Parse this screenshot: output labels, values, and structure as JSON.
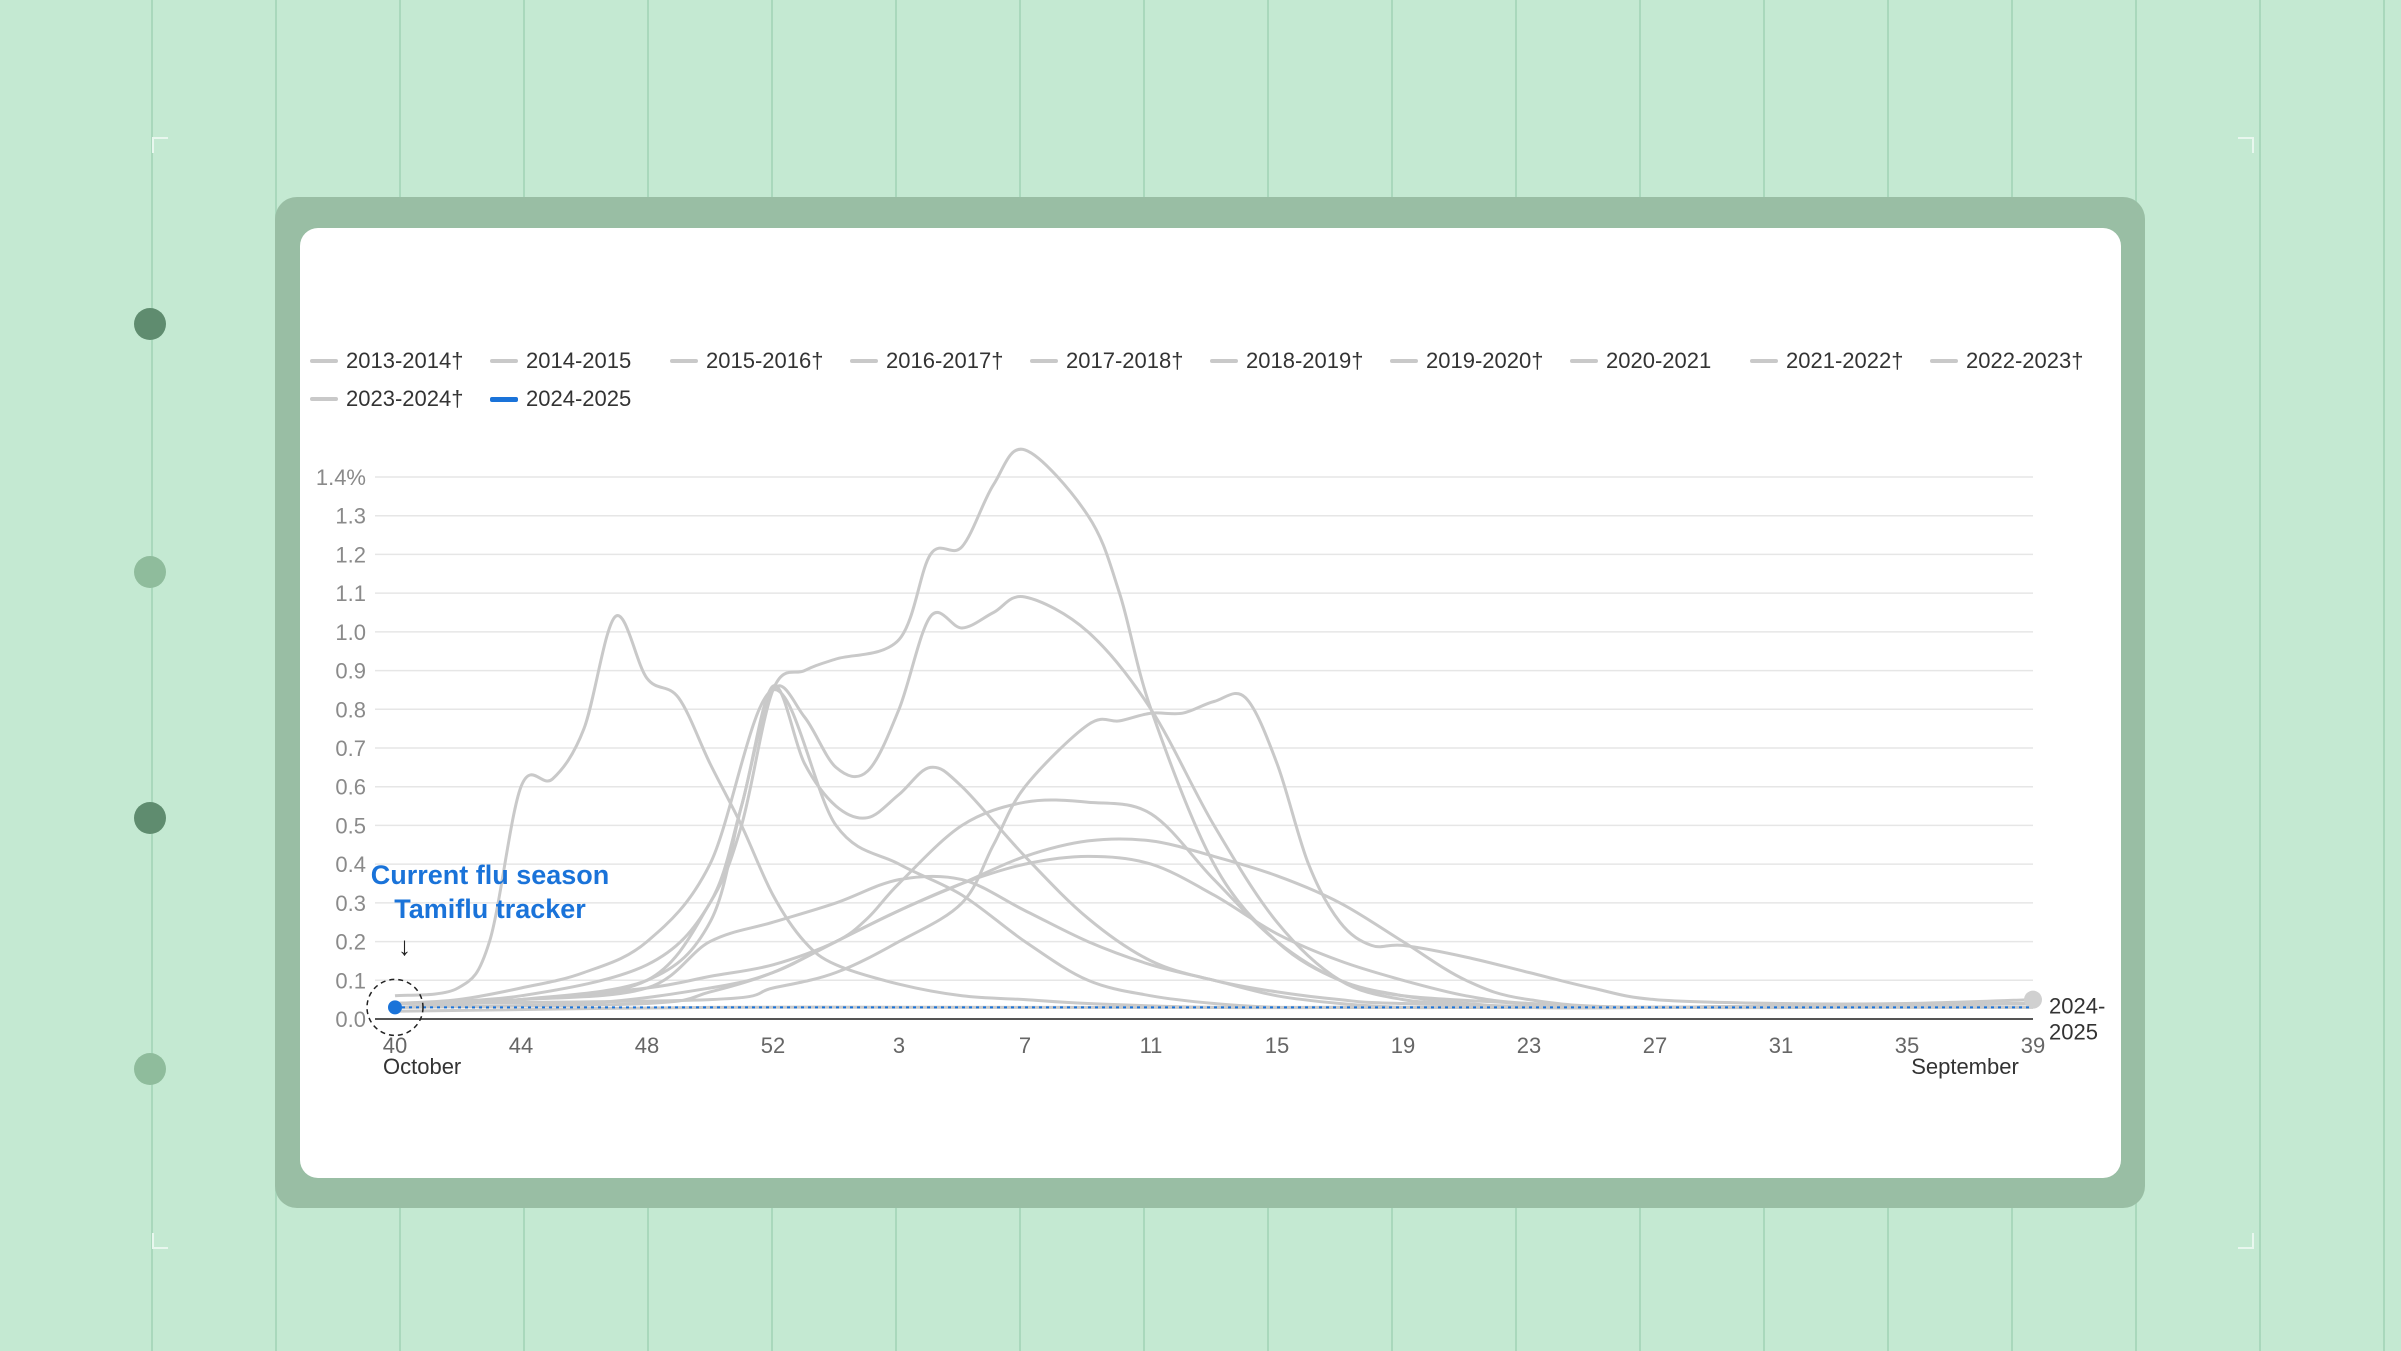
{
  "annotation": {
    "line1": "Current flu season",
    "line2": "Tamiflu tracker",
    "arrow": "↓"
  },
  "chart_data": {
    "type": "line",
    "title": "",
    "xlabel": "",
    "ylabel": "",
    "x_ticks": [
      "40",
      "44",
      "48",
      "52",
      "3",
      "7",
      "11",
      "15",
      "19",
      "23",
      "27",
      "31",
      "35",
      "39"
    ],
    "x_sublabels": {
      "first": "October",
      "last": "September"
    },
    "y_ticks": [
      "0.0",
      "0.1",
      "0.2",
      "0.3",
      "0.4",
      "0.5",
      "0.6",
      "0.7",
      "0.8",
      "0.9",
      "1.0",
      "1.1",
      "1.2",
      "1.3",
      "1.4%"
    ],
    "ylim": [
      0,
      1.4
    ],
    "xlim_week_index": [
      0,
      52
    ],
    "grid": true,
    "legend_position": "top",
    "colors": {
      "past": "#c9c9c9",
      "current": "#1a73d9"
    },
    "series": [
      {
        "name": "2013-2014†",
        "x": [
          0,
          2,
          4,
          6,
          8,
          10,
          12,
          14,
          16,
          18,
          20,
          22,
          24,
          26,
          28,
          30,
          35,
          40,
          45,
          52
        ],
        "y": [
          0.04,
          0.05,
          0.08,
          0.12,
          0.2,
          0.4,
          0.85,
          0.5,
          0.4,
          0.32,
          0.2,
          0.1,
          0.06,
          0.04,
          0.03,
          0.03,
          0.03,
          0.03,
          0.03,
          0.04
        ]
      },
      {
        "name": "2014-2015",
        "x": [
          0,
          2,
          3,
          4,
          5,
          6,
          7,
          8,
          9,
          10,
          11,
          12,
          13,
          14,
          16,
          18,
          20,
          22,
          26,
          30,
          40,
          52
        ],
        "y": [
          0.06,
          0.08,
          0.2,
          0.6,
          0.62,
          0.75,
          1.04,
          0.88,
          0.83,
          0.66,
          0.5,
          0.32,
          0.2,
          0.14,
          0.09,
          0.06,
          0.05,
          0.04,
          0.03,
          0.03,
          0.03,
          0.04
        ]
      },
      {
        "name": "2015-2016†",
        "x": [
          0,
          4,
          8,
          10,
          12,
          14,
          15,
          16,
          18,
          20,
          22,
          24,
          26,
          28,
          30,
          32,
          34,
          36,
          40,
          52
        ],
        "y": [
          0.04,
          0.05,
          0.08,
          0.11,
          0.14,
          0.2,
          0.26,
          0.35,
          0.5,
          0.56,
          0.56,
          0.53,
          0.36,
          0.2,
          0.1,
          0.06,
          0.04,
          0.03,
          0.03,
          0.04
        ]
      },
      {
        "name": "2016-2017†",
        "x": [
          0,
          4,
          8,
          10,
          12,
          14,
          16,
          18,
          20,
          22,
          24,
          26,
          28,
          30,
          32,
          34,
          40,
          52
        ],
        "y": [
          0.04,
          0.05,
          0.08,
          0.2,
          0.25,
          0.3,
          0.36,
          0.36,
          0.28,
          0.2,
          0.14,
          0.1,
          0.06,
          0.04,
          0.03,
          0.03,
          0.03,
          0.04
        ]
      },
      {
        "name": "2017-2018†",
        "x": [
          0,
          4,
          8,
          10,
          11,
          12,
          13,
          14,
          16,
          17,
          18,
          19,
          20,
          22,
          23,
          24,
          26,
          28,
          30,
          32,
          36,
          40,
          52
        ],
        "y": [
          0.04,
          0.05,
          0.1,
          0.3,
          0.5,
          0.85,
          0.9,
          0.93,
          0.98,
          1.2,
          1.22,
          1.38,
          1.47,
          1.3,
          1.1,
          0.8,
          0.4,
          0.2,
          0.1,
          0.06,
          0.04,
          0.03,
          0.04
        ]
      },
      {
        "name": "2018-2019†",
        "x": [
          0,
          8,
          10,
          12,
          14,
          16,
          18,
          20,
          22,
          24,
          26,
          28,
          30,
          32,
          34,
          36,
          40,
          52
        ],
        "y": [
          0.03,
          0.04,
          0.07,
          0.12,
          0.2,
          0.28,
          0.35,
          0.42,
          0.46,
          0.46,
          0.42,
          0.37,
          0.3,
          0.2,
          0.1,
          0.05,
          0.03,
          0.04
        ]
      },
      {
        "name": "2019-2020†",
        "x": [
          0,
          4,
          8,
          10,
          11,
          12,
          13,
          14,
          15,
          16,
          17,
          18,
          19,
          20,
          22,
          24,
          26,
          28,
          30,
          32,
          34,
          36,
          40,
          52
        ],
        "y": [
          0.03,
          0.05,
          0.1,
          0.25,
          0.55,
          0.85,
          0.78,
          0.65,
          0.64,
          0.8,
          1.04,
          1.01,
          1.05,
          1.09,
          1.0,
          0.8,
          0.5,
          0.25,
          0.1,
          0.05,
          0.04,
          0.03,
          0.03,
          0.04
        ]
      },
      {
        "name": "2020-2021",
        "x": [
          0,
          10,
          20,
          30,
          40,
          52
        ],
        "y": [
          0.02,
          0.03,
          0.03,
          0.03,
          0.03,
          0.03
        ]
      },
      {
        "name": "2021-2022†",
        "x": [
          0,
          6,
          10,
          12,
          14,
          16,
          18,
          20,
          22,
          24,
          26,
          28,
          30,
          32,
          34,
          36,
          40,
          52
        ],
        "y": [
          0.03,
          0.04,
          0.08,
          0.12,
          0.2,
          0.28,
          0.35,
          0.4,
          0.42,
          0.4,
          0.32,
          0.22,
          0.15,
          0.1,
          0.06,
          0.04,
          0.03,
          0.04
        ]
      },
      {
        "name": "2022-2023†",
        "x": [
          0,
          4,
          8,
          10,
          11,
          12,
          13,
          14,
          15,
          16,
          17,
          18,
          20,
          22,
          24,
          26,
          28,
          30,
          32,
          40,
          52
        ],
        "y": [
          0.04,
          0.06,
          0.14,
          0.3,
          0.55,
          0.86,
          0.66,
          0.55,
          0.52,
          0.58,
          0.65,
          0.6,
          0.42,
          0.26,
          0.15,
          0.1,
          0.07,
          0.05,
          0.04,
          0.03,
          0.04
        ]
      },
      {
        "name": "2023-2024†",
        "x": [
          0,
          10,
          12,
          14,
          16,
          18,
          19,
          20,
          22,
          23,
          24,
          25,
          26,
          27,
          28,
          29,
          30,
          31,
          32,
          34,
          36,
          38,
          40,
          44,
          48,
          52
        ],
        "y": [
          0.04,
          0.05,
          0.08,
          0.12,
          0.2,
          0.3,
          0.45,
          0.6,
          0.76,
          0.77,
          0.79,
          0.79,
          0.82,
          0.83,
          0.66,
          0.4,
          0.25,
          0.19,
          0.19,
          0.16,
          0.12,
          0.08,
          0.05,
          0.04,
          0.04,
          0.05
        ]
      },
      {
        "name": "2024-2025",
        "x": [
          0
        ],
        "y": [
          0.03
        ]
      }
    ],
    "end_label": "2024-2025"
  }
}
